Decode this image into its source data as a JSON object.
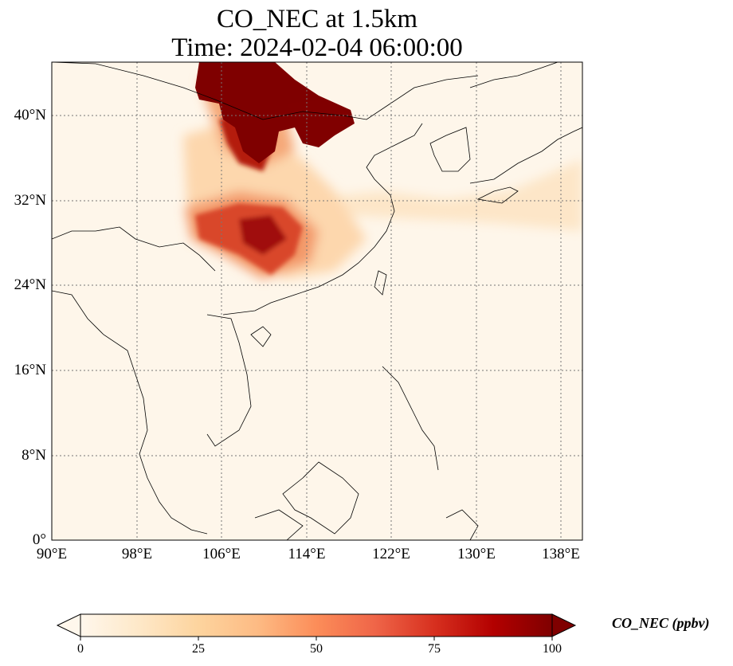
{
  "title": {
    "line1": "CO_NEC at 1.5km",
    "line2": "Time: 2024-02-04 06:00:00"
  },
  "map": {
    "lon_range": [
      90,
      140
    ],
    "lat_range": [
      0,
      45
    ],
    "gridlines": "dotted",
    "y_ticks": [
      "40°N",
      "32°N",
      "24°N",
      "16°N",
      "8°N",
      "0°"
    ],
    "x_ticks": [
      "90°E",
      "98°E",
      "106°E",
      "114°E",
      "122°E",
      "130°E",
      "138°E"
    ]
  },
  "colorbar": {
    "label": "CO_NEC (ppbv)",
    "ticks": [
      "0",
      "25",
      "50",
      "75",
      "100"
    ],
    "range": [
      0,
      100
    ],
    "extend": "both",
    "colormap": "OrRd",
    "colors": [
      "#fff7ec",
      "#fee8c8",
      "#fdd49e",
      "#fdbb84",
      "#fc8d59",
      "#ef6548",
      "#d7301f",
      "#b30000",
      "#7f0000"
    ]
  }
}
